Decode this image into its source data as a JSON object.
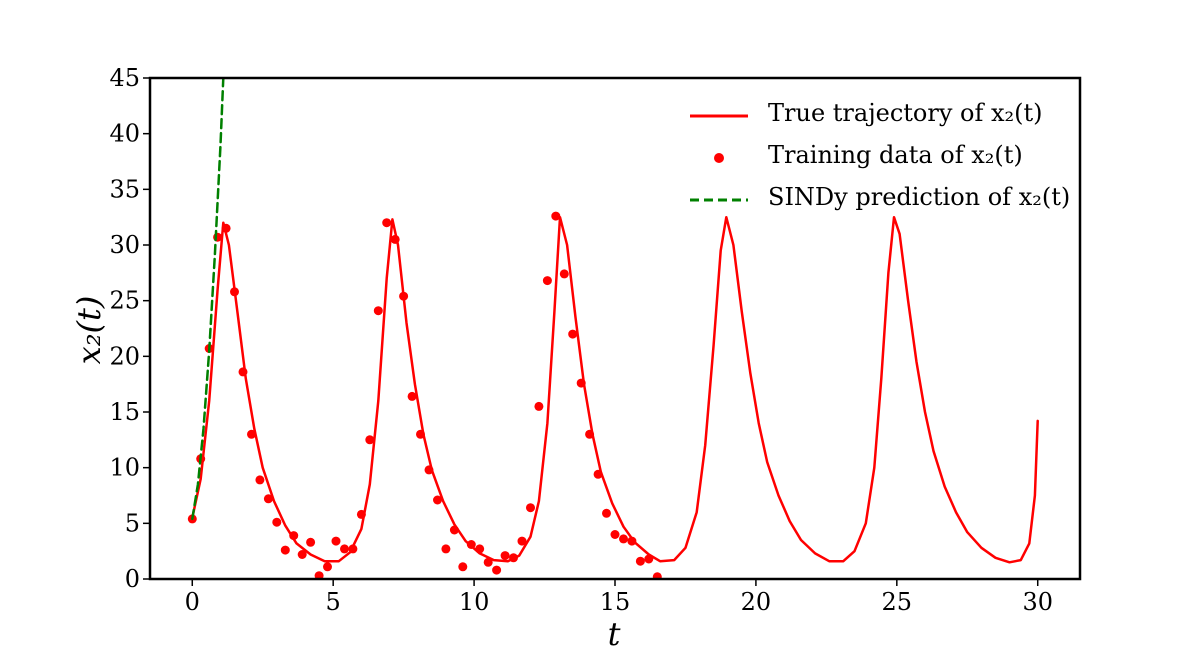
{
  "chart_data": {
    "type": "line",
    "xlabel": "t",
    "ylabel": "x₂(t)",
    "xlim": [
      -1.5,
      31.5
    ],
    "ylim": [
      0,
      45
    ],
    "xticks": [
      "0",
      "5",
      "10",
      "15",
      "20",
      "25",
      "30"
    ],
    "yticks": [
      "0",
      "5",
      "10",
      "15",
      "20",
      "25",
      "30",
      "35",
      "40",
      "45"
    ],
    "grid": false,
    "legend_position": "top-right",
    "legend": [
      "True trajectory of x₂(t)",
      "Training data of x₂(t)",
      "SINDy prediction of x₂(t)"
    ],
    "series": [
      {
        "name": "True trajectory of x₂(t)",
        "style": "solid line",
        "color": "#ff0000",
        "x": [
          0,
          0.3,
          0.6,
          0.9,
          1.1,
          1.3,
          1.6,
          1.9,
          2.2,
          2.5,
          2.9,
          3.3,
          3.7,
          4.2,
          4.7,
          5.2,
          5.6,
          6.0,
          6.3,
          6.6,
          6.9,
          7.1,
          7.3,
          7.6,
          7.9,
          8.2,
          8.5,
          8.9,
          9.3,
          9.7,
          10.2,
          10.7,
          11.2,
          11.6,
          12.0,
          12.3,
          12.6,
          12.85,
          13.05,
          13.3,
          13.6,
          13.9,
          14.2,
          14.5,
          14.9,
          15.3,
          15.7,
          16.2,
          16.6,
          17.1,
          17.5,
          17.9,
          18.2,
          18.5,
          18.75,
          18.95,
          19.2,
          19.5,
          19.8,
          20.1,
          20.4,
          20.8,
          21.2,
          21.6,
          22.1,
          22.6,
          23.1,
          23.5,
          23.9,
          24.2,
          24.45,
          24.7,
          24.9,
          25.1,
          25.4,
          25.7,
          26.0,
          26.3,
          26.7,
          27.1,
          27.5,
          28.0,
          28.5,
          29.0,
          29.4,
          29.7,
          29.9,
          30.0
        ],
        "y": [
          5.5,
          9,
          16,
          26,
          32,
          30,
          24,
          18,
          13.5,
          10,
          7,
          4.8,
          3.2,
          2.2,
          1.6,
          1.6,
          2.4,
          4.5,
          8.5,
          16,
          27,
          32.3,
          30,
          23,
          17.5,
          13,
          9.8,
          7,
          4.9,
          3.4,
          2.3,
          1.7,
          1.6,
          2.1,
          3.8,
          7,
          14,
          24,
          32.5,
          30,
          23.5,
          17.5,
          13,
          9.6,
          6.8,
          4.7,
          3.3,
          2.2,
          1.6,
          1.7,
          2.8,
          6,
          12,
          21,
          29.5,
          32.5,
          30,
          24,
          18.5,
          14,
          10.5,
          7.5,
          5.2,
          3.5,
          2.3,
          1.6,
          1.6,
          2.5,
          5,
          10,
          18,
          27.5,
          32.5,
          31,
          25,
          19.5,
          15,
          11.5,
          8.3,
          6,
          4.2,
          2.8,
          1.9,
          1.5,
          1.7,
          3.2,
          7.5,
          14.2
        ]
      },
      {
        "name": "Training data of x₂(t)",
        "style": "markers",
        "color": "#ff0000",
        "x": [
          0.0,
          0.3,
          0.6,
          0.9,
          1.2,
          1.5,
          1.8,
          2.1,
          2.4,
          2.7,
          3.0,
          3.3,
          3.6,
          3.9,
          4.2,
          4.5,
          4.8,
          5.1,
          5.4,
          5.7,
          6.0,
          6.3,
          6.6,
          6.9,
          7.2,
          7.5,
          7.8,
          8.1,
          8.4,
          8.7,
          9.0,
          9.3,
          9.6,
          9.9,
          10.2,
          10.5,
          10.8,
          11.1,
          11.4,
          11.7,
          12.0,
          12.3,
          12.6,
          12.9,
          13.2,
          13.5,
          13.8,
          14.1,
          14.4,
          14.7,
          15.0,
          15.3,
          15.6,
          15.9,
          16.2,
          16.5
        ],
        "y": [
          5.4,
          10.8,
          20.7,
          30.7,
          31.5,
          25.8,
          18.6,
          13.0,
          8.9,
          7.2,
          5.1,
          2.6,
          3.9,
          2.2,
          3.3,
          0.3,
          1.1,
          3.4,
          2.7,
          2.7,
          5.8,
          12.5,
          24.1,
          32.0,
          30.5,
          25.4,
          16.4,
          13.0,
          9.8,
          7.1,
          2.7,
          4.4,
          1.1,
          3.1,
          2.7,
          1.5,
          0.8,
          2.1,
          1.9,
          3.4,
          6.4,
          15.5,
          26.8,
          32.6,
          27.4,
          22.0,
          17.6,
          13.0,
          9.4,
          5.9,
          4.0,
          3.6,
          3.4,
          1.6,
          1.8,
          0.2
        ]
      },
      {
        "name": "SINDy prediction of x₂(t)",
        "style": "dashed line",
        "color": "#008000",
        "x": [
          0.0,
          0.2,
          0.4,
          0.6,
          0.8,
          1.0,
          1.1
        ],
        "y": [
          5.4,
          8.5,
          13.5,
          20.5,
          29,
          39,
          45
        ]
      }
    ]
  }
}
